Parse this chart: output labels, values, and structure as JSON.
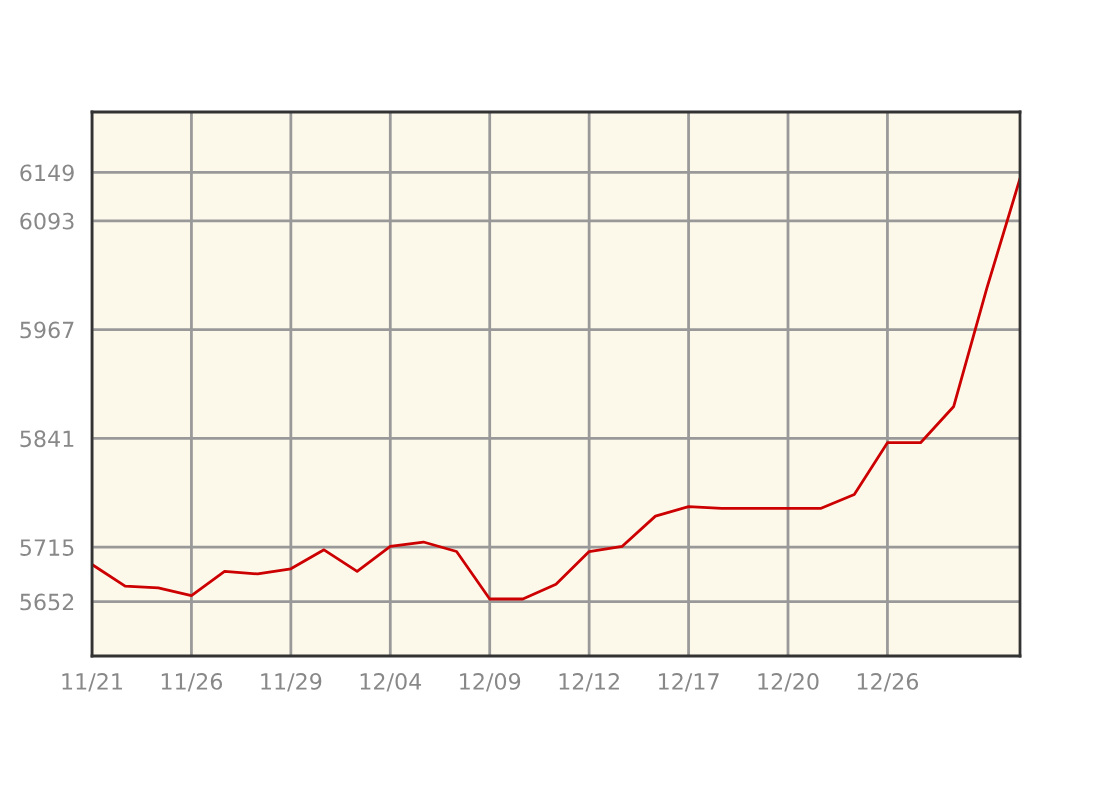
{
  "chart_data": {
    "type": "line",
    "categories": [
      "11/21",
      null,
      null,
      "11/26",
      null,
      null,
      "11/29",
      null,
      null,
      "12/04",
      null,
      null,
      "12/09",
      null,
      null,
      "12/12",
      null,
      null,
      "12/17",
      null,
      null,
      "12/20",
      null,
      null,
      "12/26",
      null,
      null,
      null,
      null
    ],
    "series": [
      {
        "color": "#cc0000",
        "values": [
          5695,
          5670,
          5668,
          5659,
          5687,
          5684,
          5690,
          5712,
          5687,
          5716,
          5721,
          5710,
          5655,
          5655,
          5672,
          5710,
          5716,
          5751,
          5762,
          5760,
          5760,
          5760,
          5760,
          5776,
          5836,
          5836,
          5878,
          6015,
          6142
        ]
      }
    ],
    "ylim": [
      5589,
      6219
    ],
    "yticks": [
      5652,
      5715,
      5841,
      5967,
      6093,
      6149
    ],
    "grid": true,
    "marker": "none",
    "line_style": "solid"
  }
}
